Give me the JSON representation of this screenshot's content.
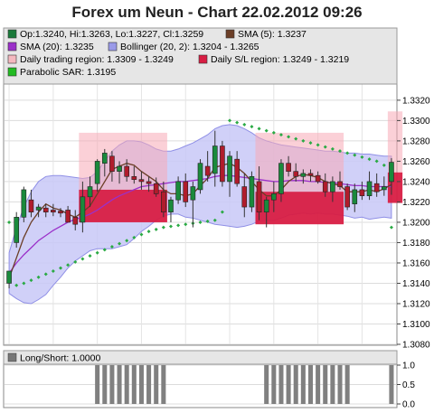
{
  "chart_data": {
    "type": "candlestick",
    "title": "Forex um Neun - Chart 22.02.2012 09:26",
    "legend": [
      {
        "label": "Op:1.3240, Hi:1.3263, Lo:1.3227, Cl:1.3259",
        "color": "#1a7a3a"
      },
      {
        "label": "SMA (5): 1.3237",
        "color": "#6b3e26"
      },
      {
        "label": "SMA (20): 1.3235",
        "color": "#9b30c9"
      },
      {
        "label": "Bollinger (20, 2): 1.3204 - 1.3265",
        "color": "#9a9ae8"
      },
      {
        "label": "Daily trading region: 1.3309 - 1.3249",
        "color": "#f4b8bf"
      },
      {
        "label": "Daily S/L region: 1.3249 - 1.3219",
        "color": "#d81d43"
      },
      {
        "label": "Parabolic SAR: 1.3195",
        "color": "#22bb22"
      }
    ],
    "y_axis": {
      "min": 1.308,
      "max": 1.3335,
      "ticks": [
        "1.3320",
        "1.3300",
        "1.3280",
        "1.3260",
        "1.3240",
        "1.3220",
        "1.3200",
        "1.3180",
        "1.3160",
        "1.3140",
        "1.3120",
        "1.3100",
        "1.3080"
      ]
    },
    "grid": true,
    "candles": [
      {
        "o": 1.314,
        "h": 1.3152,
        "l": 1.3135,
        "c": 1.3152
      },
      {
        "o": 1.318,
        "h": 1.321,
        "l": 1.3175,
        "c": 1.3205
      },
      {
        "o": 1.3205,
        "h": 1.3235,
        "l": 1.32,
        "c": 1.3232
      },
      {
        "o": 1.3222,
        "h": 1.3232,
        "l": 1.3205,
        "c": 1.321
      },
      {
        "o": 1.3212,
        "h": 1.3218,
        "l": 1.3205,
        "c": 1.3215
      },
      {
        "o": 1.3214,
        "h": 1.3218,
        "l": 1.3205,
        "c": 1.321
      },
      {
        "o": 1.3212,
        "h": 1.3218,
        "l": 1.3206,
        "c": 1.321
      },
      {
        "o": 1.3211,
        "h": 1.3214,
        "l": 1.3205,
        "c": 1.3209
      },
      {
        "o": 1.3212,
        "h": 1.3216,
        "l": 1.32,
        "c": 1.32
      },
      {
        "o": 1.3205,
        "h": 1.3212,
        "l": 1.3192,
        "c": 1.3198
      },
      {
        "o": 1.32,
        "h": 1.324,
        "l": 1.319,
        "c": 1.3225
      },
      {
        "o": 1.3225,
        "h": 1.3245,
        "l": 1.3215,
        "c": 1.3235
      },
      {
        "o": 1.3238,
        "h": 1.3262,
        "l": 1.323,
        "c": 1.326
      },
      {
        "o": 1.3258,
        "h": 1.3272,
        "l": 1.3245,
        "c": 1.3268
      },
      {
        "o": 1.3265,
        "h": 1.327,
        "l": 1.324,
        "c": 1.325
      },
      {
        "o": 1.325,
        "h": 1.326,
        "l": 1.3238,
        "c": 1.3255
      },
      {
        "o": 1.3255,
        "h": 1.3262,
        "l": 1.324,
        "c": 1.3245
      },
      {
        "o": 1.3245,
        "h": 1.3255,
        "l": 1.3238,
        "c": 1.3242
      },
      {
        "o": 1.3242,
        "h": 1.325,
        "l": 1.3232,
        "c": 1.324
      },
      {
        "o": 1.324,
        "h": 1.3245,
        "l": 1.323,
        "c": 1.3238
      },
      {
        "o": 1.3238,
        "h": 1.3244,
        "l": 1.3225,
        "c": 1.3228
      },
      {
        "o": 1.323,
        "h": 1.324,
        "l": 1.3205,
        "c": 1.321
      },
      {
        "o": 1.321,
        "h": 1.3225,
        "l": 1.32,
        "c": 1.3222
      },
      {
        "o": 1.3222,
        "h": 1.3245,
        "l": 1.3218,
        "c": 1.324
      },
      {
        "o": 1.324,
        "h": 1.3248,
        "l": 1.3215,
        "c": 1.322
      },
      {
        "o": 1.3222,
        "h": 1.324,
        "l": 1.3195,
        "c": 1.3235
      },
      {
        "o": 1.3232,
        "h": 1.3262,
        "l": 1.3228,
        "c": 1.3258
      },
      {
        "o": 1.3255,
        "h": 1.327,
        "l": 1.324,
        "c": 1.3246
      },
      {
        "o": 1.3248,
        "h": 1.329,
        "l": 1.3235,
        "c": 1.3275
      },
      {
        "o": 1.3275,
        "h": 1.328,
        "l": 1.3235,
        "c": 1.324
      },
      {
        "o": 1.324,
        "h": 1.327,
        "l": 1.3225,
        "c": 1.3265
      },
      {
        "o": 1.3262,
        "h": 1.327,
        "l": 1.3235,
        "c": 1.3238
      },
      {
        "o": 1.3235,
        "h": 1.3248,
        "l": 1.3205,
        "c": 1.3215
      },
      {
        "o": 1.3215,
        "h": 1.325,
        "l": 1.321,
        "c": 1.3245
      },
      {
        "o": 1.324,
        "h": 1.3255,
        "l": 1.3202,
        "c": 1.321
      },
      {
        "o": 1.321,
        "h": 1.3225,
        "l": 1.3195,
        "c": 1.3222
      },
      {
        "o": 1.3222,
        "h": 1.324,
        "l": 1.321,
        "c": 1.3228
      },
      {
        "o": 1.3228,
        "h": 1.3262,
        "l": 1.322,
        "c": 1.3258
      },
      {
        "o": 1.3258,
        "h": 1.3265,
        "l": 1.3245,
        "c": 1.325
      },
      {
        "o": 1.325,
        "h": 1.3258,
        "l": 1.324,
        "c": 1.3245
      },
      {
        "o": 1.3245,
        "h": 1.3252,
        "l": 1.3238,
        "c": 1.3248
      },
      {
        "o": 1.3248,
        "h": 1.3252,
        "l": 1.324,
        "c": 1.3246
      },
      {
        "o": 1.3246,
        "h": 1.325,
        "l": 1.3238,
        "c": 1.324
      },
      {
        "o": 1.324,
        "h": 1.3248,
        "l": 1.3225,
        "c": 1.323
      },
      {
        "o": 1.323,
        "h": 1.3245,
        "l": 1.322,
        "c": 1.324
      },
      {
        "o": 1.324,
        "h": 1.325,
        "l": 1.3232,
        "c": 1.3235
      },
      {
        "o": 1.3235,
        "h": 1.3238,
        "l": 1.3212,
        "c": 1.3215
      },
      {
        "o": 1.3218,
        "h": 1.3238,
        "l": 1.321,
        "c": 1.3232
      },
      {
        "o": 1.3232,
        "h": 1.324,
        "l": 1.3222,
        "c": 1.3226
      },
      {
        "o": 1.3226,
        "h": 1.325,
        "l": 1.3222,
        "c": 1.324
      },
      {
        "o": 1.3238,
        "h": 1.3248,
        "l": 1.3225,
        "c": 1.323
      },
      {
        "o": 1.3232,
        "h": 1.3245,
        "l": 1.3226,
        "c": 1.3235
      },
      {
        "o": 1.324,
        "h": 1.3263,
        "l": 1.3227,
        "c": 1.3259
      }
    ],
    "sma5": [
      1.3145,
      1.3165,
      1.3185,
      1.32,
      1.321,
      1.3218,
      1.3214,
      1.3212,
      1.3208,
      1.3205,
      1.321,
      1.3216,
      1.3228,
      1.324,
      1.3252,
      1.3255,
      1.3258,
      1.3256,
      1.325,
      1.3245,
      1.324,
      1.3232,
      1.3228,
      1.3228,
      1.3226,
      1.3228,
      1.3236,
      1.3243,
      1.3254,
      1.3256,
      1.3258,
      1.3254,
      1.3248,
      1.324,
      1.3232,
      1.3226,
      1.3226,
      1.3232,
      1.324,
      1.3245,
      1.3247,
      1.3246,
      1.3244,
      1.324,
      1.3238,
      1.3236,
      1.323,
      1.323,
      1.323,
      1.3232,
      1.323,
      1.3233,
      1.3237
    ],
    "sma20": [
      1.315,
      1.316,
      1.3168,
      1.3175,
      1.3182,
      1.3187,
      1.3192,
      1.3196,
      1.32,
      1.3203,
      1.3205,
      1.3208,
      1.3212,
      1.3217,
      1.3222,
      1.3226,
      1.3229,
      1.3232,
      1.3235,
      1.3236,
      1.3237,
      1.3238,
      1.3239,
      1.324,
      1.324,
      1.3241,
      1.3242,
      1.3243,
      1.3245,
      1.3246,
      1.3246,
      1.3245,
      1.3244,
      1.3243,
      1.3242,
      1.3241,
      1.324,
      1.324,
      1.3241,
      1.3241,
      1.3241,
      1.324,
      1.324,
      1.3239,
      1.3239,
      1.3238,
      1.3237,
      1.3236,
      1.3236,
      1.3235,
      1.3235,
      1.3235,
      1.3235
    ],
    "bb_upper": [
      1.317,
      1.3195,
      1.3215,
      1.323,
      1.324,
      1.3245,
      1.3246,
      1.3246,
      1.3245,
      1.3244,
      1.3243,
      1.3244,
      1.325,
      1.326,
      1.327,
      1.3276,
      1.328,
      1.328,
      1.3279,
      1.3276,
      1.3272,
      1.327,
      1.327,
      1.3272,
      1.3275,
      1.3278,
      1.3282,
      1.3286,
      1.3292,
      1.3295,
      1.3296,
      1.3295,
      1.3292,
      1.3288,
      1.3283,
      1.328,
      1.3278,
      1.3276,
      1.3275,
      1.3274,
      1.3273,
      1.3272,
      1.3271,
      1.327,
      1.327,
      1.3269,
      1.3268,
      1.3268,
      1.3267,
      1.3267,
      1.3266,
      1.3265,
      1.3265
    ],
    "bb_lower": [
      1.313,
      1.3125,
      1.3121,
      1.312,
      1.3124,
      1.3129,
      1.3138,
      1.3146,
      1.3155,
      1.3162,
      1.3167,
      1.3172,
      1.3174,
      1.3174,
      1.3174,
      1.3176,
      1.3178,
      1.3184,
      1.3191,
      1.3196,
      1.3202,
      1.3206,
      1.3208,
      1.3208,
      1.3205,
      1.3204,
      1.3202,
      1.32,
      1.3198,
      1.3197,
      1.3196,
      1.3195,
      1.3196,
      1.3198,
      1.3201,
      1.3202,
      1.3202,
      1.3204,
      1.3207,
      1.3208,
      1.3209,
      1.3208,
      1.3209,
      1.3208,
      1.3208,
      1.3207,
      1.3206,
      1.3204,
      1.3205,
      1.3203,
      1.3204,
      1.3205,
      1.3204
    ],
    "sar": [
      1.32,
      1.3138,
      1.314,
      1.3143,
      1.3146,
      1.3149,
      1.3152,
      1.3155,
      1.3158,
      1.3161,
      1.3164,
      1.3167,
      1.317,
      1.3173,
      1.3176,
      1.3179,
      1.3182,
      1.3185,
      1.3188,
      1.3191,
      1.3193,
      1.3195,
      1.3196,
      1.3197,
      1.3198,
      1.3199,
      1.32,
      1.3201,
      1.3202,
      1.321,
      1.33,
      1.3298,
      1.3296,
      1.3294,
      1.3292,
      1.329,
      1.3288,
      1.3286,
      1.3284,
      1.3282,
      1.328,
      1.3278,
      1.3276,
      1.3274,
      1.3272,
      1.327,
      1.3268,
      1.3266,
      1.3264,
      1.3262,
      1.326,
      1.3256,
      1.3195
    ],
    "trading_regions": [
      {
        "start": 10,
        "end": 21,
        "high": 1.3288,
        "low": 1.3232
      },
      {
        "start": 34,
        "end": 45,
        "high": 1.3288,
        "low": 1.323
      },
      {
        "start": 52,
        "end": 53,
        "high": 1.3309,
        "low": 1.3249
      }
    ],
    "sl_regions": [
      {
        "start": 10,
        "end": 21,
        "high": 1.3232,
        "low": 1.32
      },
      {
        "start": 34,
        "end": 45,
        "high": 1.323,
        "low": 1.3198
      },
      {
        "start": 52,
        "end": 53,
        "high": 1.3249,
        "low": 1.3219
      }
    ],
    "longshort_panel": {
      "label": "Long/Short: 1.0000",
      "y_ticks": [
        "1.0",
        "0.5",
        "0.0"
      ],
      "values": [
        0,
        0,
        0,
        0,
        0,
        0,
        0,
        0,
        0,
        0,
        0,
        0,
        1,
        1,
        1,
        1,
        1,
        1,
        1,
        1,
        1,
        1,
        0,
        0,
        0,
        0,
        0,
        0,
        0,
        0,
        0,
        0,
        0,
        0,
        0,
        1,
        1,
        1,
        1,
        1,
        1,
        1,
        1,
        1,
        1,
        1,
        1,
        0,
        0,
        0,
        0,
        0,
        1
      ]
    }
  }
}
